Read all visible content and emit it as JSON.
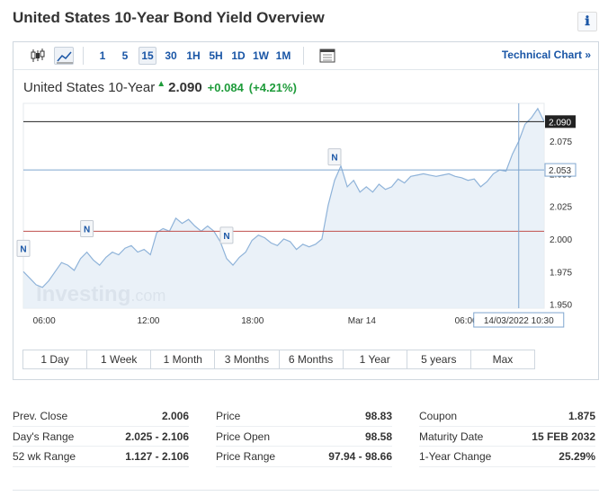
{
  "page": {
    "title": "United States 10-Year Bond Yield Overview"
  },
  "toolbar": {
    "icons": [
      "candlestick-icon",
      "line-chart-icon",
      "calendar-icon"
    ],
    "intervals": [
      "1",
      "5",
      "15",
      "30",
      "1H",
      "5H",
      "1D",
      "1W",
      "1M"
    ],
    "active_interval": "15",
    "technical_link": "Technical Chart »"
  },
  "quote": {
    "name": "United States 10-Year",
    "last": "2.090",
    "change": "+0.084",
    "change_pct": "(+4.21%)",
    "up_color": "#1e9b3a"
  },
  "chart_data": {
    "type": "area",
    "x_tick_labels": [
      "06:00",
      "12:00",
      "18:00",
      "Mar 14",
      "06:00"
    ],
    "y_tick_labels": [
      "2.075",
      "2.050",
      "2.025",
      "2.000",
      "1.975",
      "1.950"
    ],
    "ylim": [
      1.947,
      2.104
    ],
    "last_price_label": "2.090",
    "last_price": 2.09,
    "crosshair_value_label": "2.053",
    "crosshair_value": 2.053,
    "crosshair_time_label": "14/03/2022 10:30",
    "prev_close": 2.006,
    "event_marker_label": "N",
    "event_marker_x": [
      0,
      10,
      32,
      49
    ],
    "watermark": "Investing.com",
    "series": [
      {
        "values": [
          1.975,
          1.97,
          1.965,
          1.963,
          1.968,
          1.975,
          1.982,
          1.98,
          1.976,
          1.985,
          1.99,
          1.984,
          1.98,
          1.986,
          1.99,
          1.988,
          1.993,
          1.995,
          1.99,
          1.992,
          1.988,
          2.005,
          2.008,
          2.006,
          2.016,
          2.012,
          2.015,
          2.01,
          2.006,
          2.01,
          2.006,
          1.998,
          1.985,
          1.98,
          1.986,
          1.99,
          1.999,
          2.003,
          2.001,
          1.997,
          1.995,
          2.0,
          1.998,
          1.992,
          1.996,
          1.994,
          1.996,
          2.0,
          2.026,
          2.045,
          2.056,
          2.04,
          2.045,
          2.036,
          2.04,
          2.036,
          2.042,
          2.038,
          2.04,
          2.046,
          2.043,
          2.048,
          2.049,
          2.05,
          2.049,
          2.048,
          2.049,
          2.05,
          2.048,
          2.047,
          2.045,
          2.046,
          2.04,
          2.044,
          2.05,
          2.053,
          2.052,
          2.065,
          2.075,
          2.088,
          2.093,
          2.1,
          2.09
        ]
      }
    ]
  },
  "range_buttons": [
    "1 Day",
    "1 Week",
    "1 Month",
    "3 Months",
    "6 Months",
    "1 Year",
    "5 years",
    "Max"
  ],
  "stats": [
    [
      {
        "label": "Prev. Close",
        "value": "2.006"
      },
      {
        "label": "Day's Range",
        "value": "2.025 - 2.106"
      },
      {
        "label": "52 wk Range",
        "value": "1.127 - 2.106"
      }
    ],
    [
      {
        "label": "Price",
        "value": "98.83"
      },
      {
        "label": "Price Open",
        "value": "98.58"
      },
      {
        "label": "Price Range",
        "value": "97.94 - 98.66"
      }
    ],
    [
      {
        "label": "Coupon",
        "value": "1.875"
      },
      {
        "label": "Maturity Date",
        "value": "15 FEB 2032"
      },
      {
        "label": "1-Year Change",
        "value": "25.29%"
      }
    ]
  ],
  "info_icon": "ℹ",
  "colors": {
    "link": "#1a56a6",
    "area_fill": "#e6eef7",
    "area_line": "#8fb3d9",
    "prev_close_line": "#c0504d"
  }
}
